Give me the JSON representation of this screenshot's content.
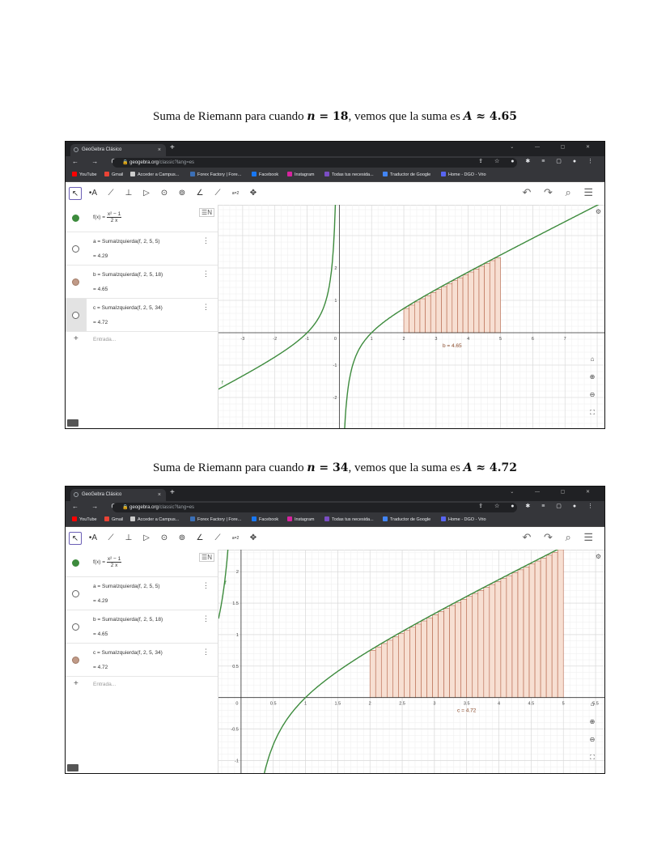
{
  "browser": {
    "tab_title": "GeoGebra Clásico",
    "tab_close": "×",
    "new_tab": "+",
    "window_controls": "⌄ — ▢ ✕",
    "nav": "← → C",
    "url_host": "geogebra.org",
    "url_path": "/classic?lang=es",
    "address_icons": "⇪ ☆ ● ✱ ≡ ▢ ● ⋮",
    "bookmarks": [
      {
        "label": "YouTube",
        "color": "#ff0000"
      },
      {
        "label": "Gmail",
        "color": "#ea4335"
      },
      {
        "label": "Acceder a Campus...",
        "color": "#cccccc"
      },
      {
        "label": "Forex Factory | Fore...",
        "color": "#3b6fb6"
      },
      {
        "label": "Facebook",
        "color": "#1877f2"
      },
      {
        "label": "Instagram",
        "color": "#d6249f"
      },
      {
        "label": "Todas tus necesida...",
        "color": "#7b4ec4"
      },
      {
        "label": "Traductor de Google",
        "color": "#4285f4"
      },
      {
        "label": "Home - DGO - Vrio",
        "color": "#5865f2"
      }
    ]
  },
  "toolbar": {
    "tools": [
      "↖",
      "•A",
      "⟋",
      "⊥",
      "▷",
      "⊙",
      "⊚",
      "∠",
      "⟋",
      "a=2",
      "✥"
    ],
    "right_tools": "↶ ↷ ⌕ ☰"
  },
  "shots": [
    {
      "caption_prefix": "Suma de Riemann para cuando ",
      "caption_n_var": "n",
      "caption_n_eq": " = 18",
      "caption_mid": ", vemos que la suma es ",
      "caption_a_var": "A",
      "caption_a_val": " ≈ 4.65",
      "function_label": "f(x) =",
      "function_num": "x² − 1",
      "function_den": "2 x",
      "rows": [
        {
          "expr": "a = SumaIzquierda(f, 2, 5, 5)",
          "value": "= 4.29",
          "color": "#ffffff"
        },
        {
          "expr": "b = SumaIzquierda(f, 2, 5, 18)",
          "value": "= 4.65",
          "color": "#c09a87"
        },
        {
          "expr": "c = SumaIzquierda(f, 2, 5, 34)",
          "value": "= 4.72",
          "color": "#ffffff"
        }
      ],
      "entry_placeholder": "Entrada...",
      "plus": "+",
      "sort_button": "☰N",
      "graph": {
        "n": 18,
        "sum_label": "b = 4.65",
        "curve_label": "f",
        "x_ticks": [
          "-3",
          "-2",
          "-1",
          "0",
          "1",
          "2",
          "3",
          "4",
          "5",
          "6",
          "7"
        ],
        "y_ticks": [
          "2",
          "1",
          "-1",
          "-2"
        ],
        "xmin": -3.75,
        "xmax": 8.25,
        "ymin": -2.95,
        "ymax": 3.95
      },
      "side_buttons": [
        "⌂",
        "⊕",
        "⊖",
        "⛶"
      ],
      "graph_settings": "⚙"
    },
    {
      "caption_prefix": "Suma de Riemann para cuando ",
      "caption_n_var": "n",
      "caption_n_eq": " = 34",
      "caption_mid": ", vemos que la suma es ",
      "caption_a_var": "A",
      "caption_a_val": " ≈ 4.72",
      "function_label": "f(x) =",
      "function_num": "x² − 1",
      "function_den": "2 x",
      "rows": [
        {
          "expr": "a = SumaIzquierda(f, 2, 5, 5)",
          "value": "= 4.29",
          "color": "#ffffff"
        },
        {
          "expr": "b = SumaIzquierda(f, 2, 5, 18)",
          "value": "= 4.65",
          "color": "#ffffff"
        },
        {
          "expr": "c = SumaIzquierda(f, 2, 5, 34)",
          "value": "= 4.72",
          "color": "#c09a87"
        }
      ],
      "entry_placeholder": "Entrada...",
      "plus": "+",
      "sort_button": "☰N",
      "graph": {
        "n": 34,
        "sum_label": "c = 4.72",
        "curve_label": "f",
        "x_ticks": [
          "0",
          "0.5",
          "1",
          "1.5",
          "2",
          "2.5",
          "3",
          "3.5",
          "4",
          "4.5",
          "5",
          "5.5"
        ],
        "y_ticks": [
          "2",
          "1.5",
          "1",
          "0.5",
          "-0.5",
          "-1"
        ],
        "xmin": -0.35,
        "xmax": 5.65,
        "ymin": -1.2,
        "ymax": 2.35
      },
      "side_buttons": [
        "⌂",
        "⊕",
        "⊖",
        "⛶"
      ],
      "graph_settings": "⚙"
    }
  ],
  "colors": {
    "curve": "#3d8b3d",
    "rect_fill": "#f7dfd2",
    "rect_stroke": "#b5654a",
    "label": "#8a4a2a"
  }
}
